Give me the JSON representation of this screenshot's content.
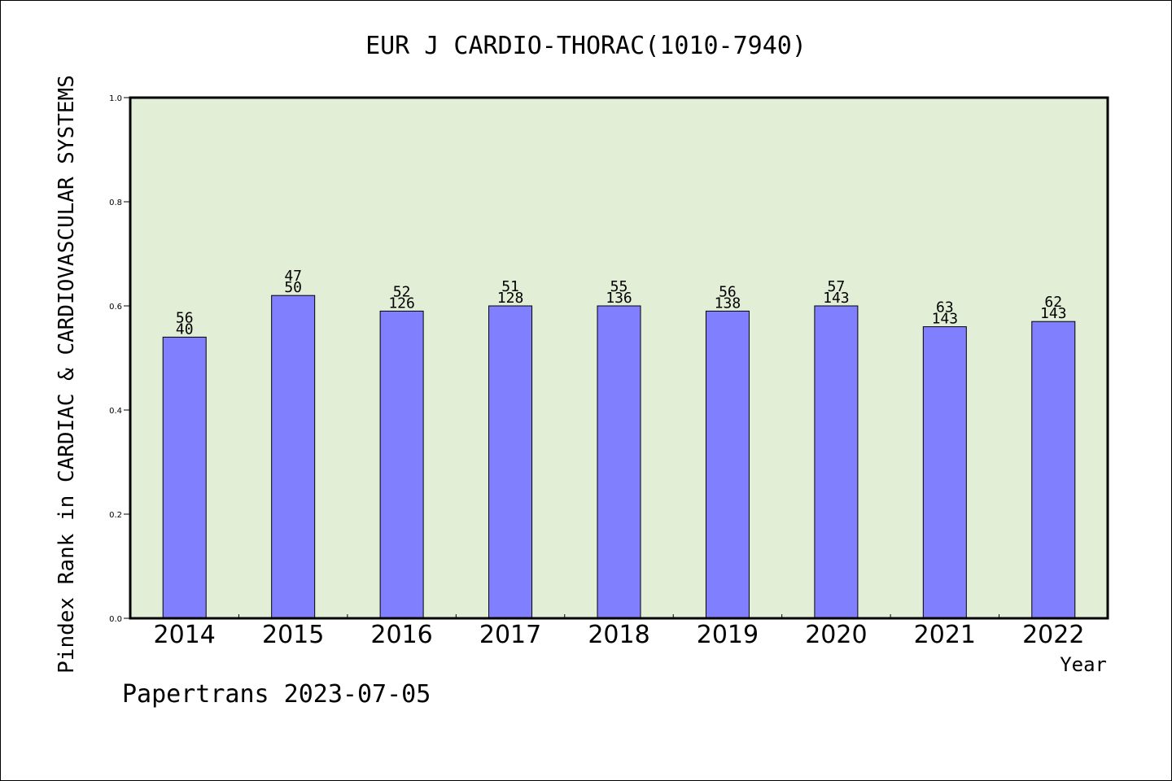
{
  "chart_data": {
    "type": "bar",
    "title": "EUR J CARDIO-THORAC(1010-7940)",
    "xlabel": "Year",
    "ylabel": "Pindex Rank in CARDIAC & CARDIOVASCULAR SYSTEMS",
    "ylim": [
      0,
      1.0
    ],
    "yticks": [
      "0.0",
      "0.2",
      "0.4",
      "0.6",
      "0.8",
      "1.0"
    ],
    "categories": [
      "2014",
      "2015",
      "2016",
      "2017",
      "2018",
      "2019",
      "2020",
      "2021",
      "2022"
    ],
    "values": [
      0.54,
      0.62,
      0.59,
      0.6,
      0.6,
      0.59,
      0.6,
      0.56,
      0.57
    ],
    "label_top": [
      "56",
      "47",
      "52",
      "51",
      "55",
      "56",
      "57",
      "63",
      "62"
    ],
    "label_bottom": [
      "40",
      "50",
      "126",
      "128",
      "136",
      "138",
      "143",
      "143",
      "143"
    ],
    "grid": false,
    "colors": {
      "plot_background": "#e2efd6",
      "bar_fill": "#8080ff",
      "axis": "#000000"
    }
  },
  "footer": {
    "credit": "Papertrans 2023-07-05"
  }
}
